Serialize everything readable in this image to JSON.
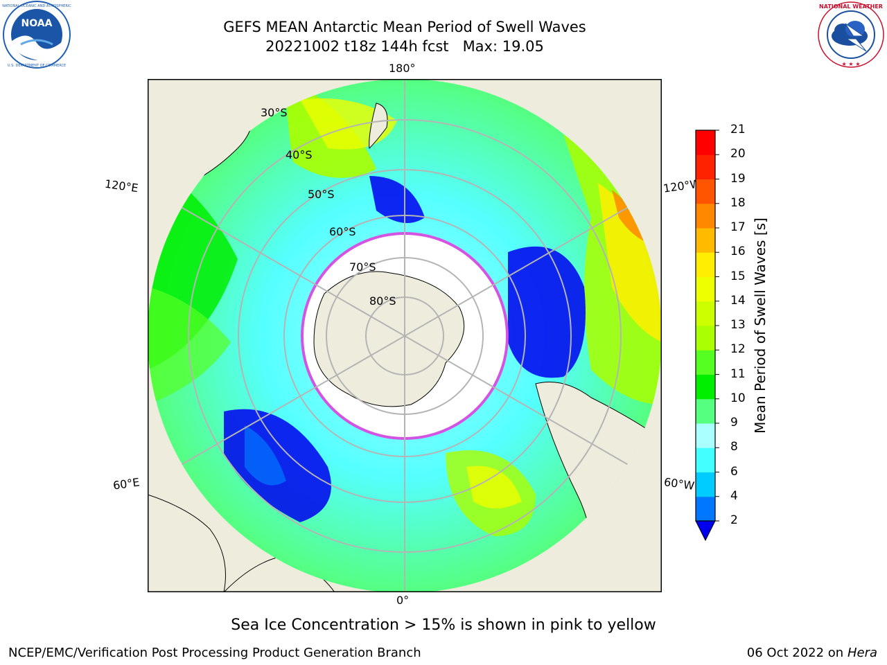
{
  "header": {
    "title_line1": "GEFS MEAN Antarctic Mean Period of Swell Waves",
    "title_line2": "20221002 t18z 144h fcst   Max: 19.05"
  },
  "logos": {
    "left": {
      "name": "NOAA",
      "ring_text": "NATIONAL OCEANIC AND ATMOSPHERIC ADMINISTRATION · U.S. DEPARTMENT OF COMMERCE",
      "color": "#1f5fb3"
    },
    "right": {
      "name": "NATIONAL WEATHER SERVICE",
      "color": "#c8102e"
    }
  },
  "map": {
    "projection": "south-polar-stereographic",
    "longitude_labels": {
      "top": "180°",
      "bottom": "0°",
      "left_upper": "120°E",
      "left_lower": "60°E",
      "right_upper": "120°W",
      "right_lower": "60°W"
    },
    "latitude_labels": [
      "30°S",
      "40°S",
      "50°S",
      "60°S",
      "70°S",
      "80°S"
    ],
    "colors": {
      "land": "#eeecdc",
      "coast": "#000000",
      "grid": "#b4b4b4",
      "ice_edge": "#e040e0"
    }
  },
  "colorbar": {
    "label": "Mean Period of Swell Waves [s]",
    "ticks": [
      "2",
      "4",
      "6",
      "8",
      "9",
      "10",
      "11",
      "12",
      "13",
      "14",
      "15",
      "16",
      "17",
      "18",
      "19",
      "20",
      "21"
    ],
    "colors": [
      "#0000ee",
      "#0077ff",
      "#00ccff",
      "#44ffff",
      "#aaffff",
      "#55ff80",
      "#00ee00",
      "#55ff22",
      "#aaff00",
      "#ccff00",
      "#eeff00",
      "#ffee00",
      "#ffbb00",
      "#ff8800",
      "#ff5500",
      "#ff2200",
      "#ff0000"
    ],
    "extend": "min"
  },
  "caption": "Sea Ice Concentration > 15% is shown in pink to yellow",
  "footer": {
    "left": "NCEP/EMC/Verification Post Processing Product Generation Branch",
    "right_date": "06 Oct 2022 on",
    "right_host": "Hera"
  }
}
